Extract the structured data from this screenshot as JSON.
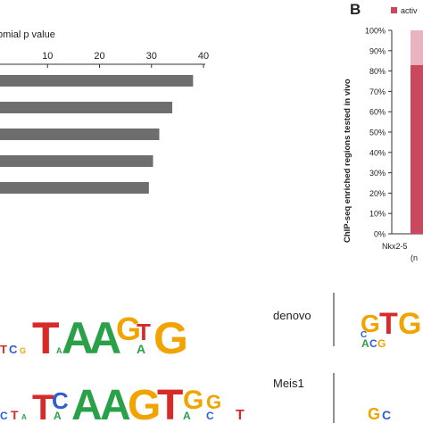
{
  "chart_data": [
    {
      "type": "bar",
      "orientation": "horizontal",
      "xlabel": "omial p value",
      "x_ticks": [
        "10",
        "20",
        "30",
        "40"
      ],
      "xlim": [
        0,
        40
      ],
      "values": [
        38,
        34,
        31.5,
        30.3,
        29.5
      ],
      "bar_color": "#6e6e6e"
    },
    {
      "type": "bar",
      "stacked": true,
      "panel_label": "B",
      "ylabel": "ChIP-seq enriched regions tested in vivo",
      "y_ticks": [
        "0%",
        "10%",
        "20%",
        "30%",
        "40%",
        "50%",
        "60%",
        "70%",
        "80%",
        "90%",
        "100%"
      ],
      "ylim": [
        0,
        100
      ],
      "legend": [
        "activ"
      ],
      "categories": [
        "Nkx2-5"
      ],
      "category_sublabel": "(n",
      "series": [
        {
          "name": "activ",
          "values": [
            83
          ],
          "color": "#c9485d"
        },
        {
          "values": [
            17
          ],
          "color": "#eab3bf"
        }
      ]
    }
  ],
  "motifs": [
    {
      "name": "denovo"
    },
    {
      "name": "Meis1"
    }
  ],
  "colors": {
    "A": "#2aa148",
    "C": "#2b5fd6",
    "G": "#f1a400",
    "T": "#d92a2a"
  }
}
